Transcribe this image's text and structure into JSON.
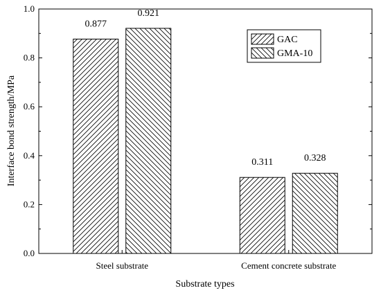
{
  "chart_data": {
    "type": "bar",
    "categories": [
      "Steel substrate",
      "Cement concrete substrate"
    ],
    "series": [
      {
        "name": "GAC",
        "values": [
          0.877,
          0.311
        ],
        "labels": [
          "0.877",
          "0.311"
        ],
        "hatch": "forward-diagonal"
      },
      {
        "name": "GMA-10",
        "values": [
          0.921,
          0.328
        ],
        "labels": [
          "0.921",
          "0.328"
        ],
        "hatch": "backward-diagonal"
      }
    ],
    "xlabel": "Substrate types",
    "ylabel": "Interface bond strength/MPa",
    "ylim": [
      0,
      1.0
    ],
    "yticks": [
      "0.0",
      "0.2",
      "0.4",
      "0.6",
      "0.8",
      "1.0"
    ],
    "grid": false,
    "legend_position": "top-right",
    "colors": {
      "bar_stroke": "#000000",
      "hatch": "#000000",
      "background": "#ffffff"
    }
  }
}
